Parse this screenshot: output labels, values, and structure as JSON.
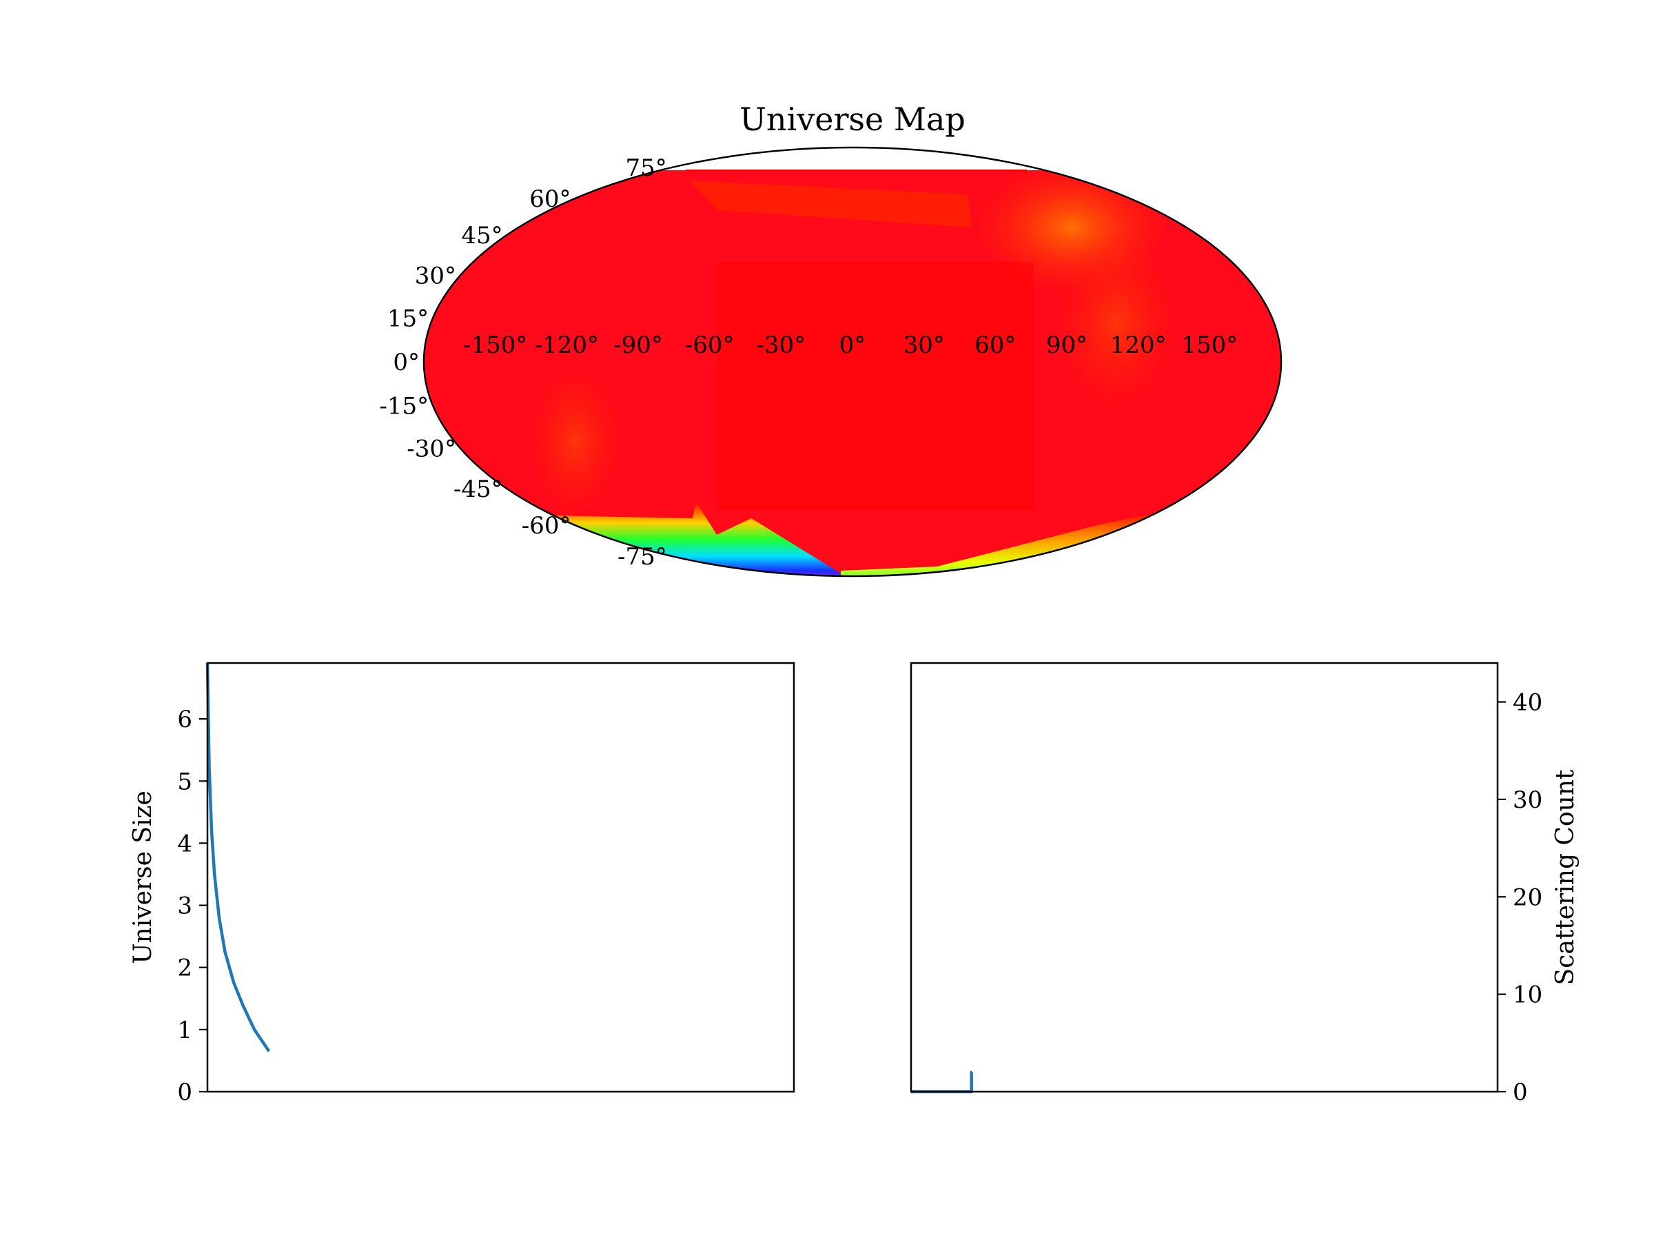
{
  "chart_data": [
    {
      "type": "heatmap",
      "projection": "mollweide",
      "title": "Universe Map",
      "colormap": "gist_rainbow",
      "latitude_ticks": [
        "75°",
        "60°",
        "45°",
        "30°",
        "15°",
        "0°",
        "-15°",
        "-30°",
        "-45°",
        "-60°",
        "-75°"
      ],
      "longitude_ticks": [
        "-150°",
        "-120°",
        "-90°",
        "-60°",
        "-30°",
        "0°",
        "30°",
        "60°",
        "90°",
        "120°",
        "150°"
      ],
      "grid": false,
      "field": {
        "lon_range": [
          -180,
          180
        ],
        "lat_range": [
          -90,
          90
        ],
        "dominant_color": "#ff0000",
        "features": [
          {
            "lon": 15,
            "lat": 55,
            "description_color": "#ff2000"
          },
          {
            "lon": 100,
            "lat": 45,
            "description_color": "#ff6a00"
          },
          {
            "lon": -120,
            "lat": -40,
            "description_color": "#ff4a00"
          },
          {
            "lon": -70,
            "lat": -68,
            "description_color": "#00c8ff"
          },
          {
            "lon": -20,
            "lat": -78,
            "description_color": "#ff00ff"
          },
          {
            "lon": 60,
            "lat": -72,
            "description_color": "#ffff00"
          }
        ]
      }
    },
    {
      "type": "line",
      "xlabel": "",
      "ylabel": "Universe Size",
      "ylim": [
        0,
        6.9
      ],
      "xlim": [
        0,
        100
      ],
      "yticks": [
        0,
        1,
        2,
        3,
        4,
        5,
        6
      ],
      "xticks": [],
      "series": [
        {
          "color": "#1f77b4",
          "x": [
            0,
            0.3,
            0.7,
            1.2,
            2,
            3,
            4.5,
            6,
            8,
            10.5
          ],
          "y": [
            6.9,
            5.2,
            4.2,
            3.5,
            2.8,
            2.25,
            1.75,
            1.4,
            1.0,
            0.65
          ]
        }
      ]
    },
    {
      "type": "line",
      "xlabel": "",
      "ylabel": "Scattering Count",
      "ylim": [
        0,
        44
      ],
      "xlim": [
        0,
        100
      ],
      "yticks": [
        0,
        10,
        20,
        30,
        40
      ],
      "xticks": [],
      "y_axis_side": "right",
      "series": [
        {
          "color": "#1f77b4",
          "x": [
            0,
            10.3,
            10.3,
            10.35
          ],
          "y": [
            0,
            0,
            2,
            2
          ]
        }
      ]
    }
  ]
}
